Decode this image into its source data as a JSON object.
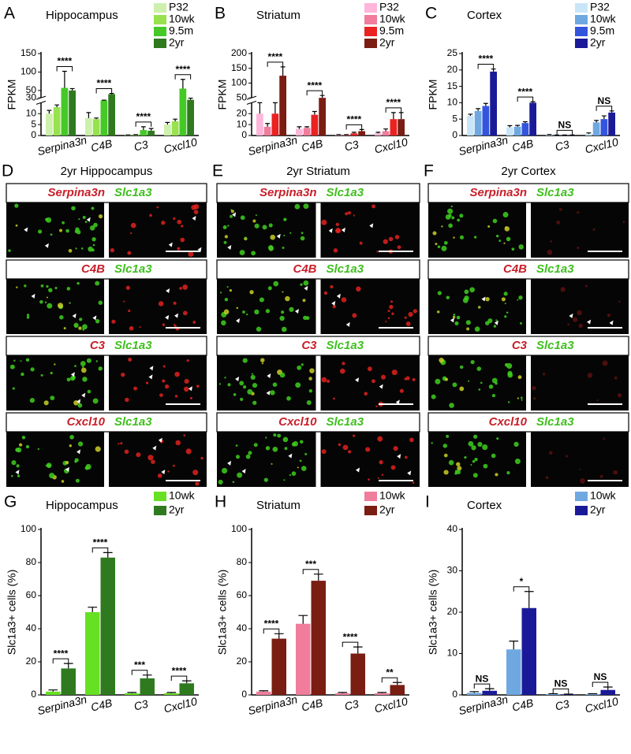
{
  "chart_data": [
    {
      "type": "bar",
      "letter": "A",
      "title": "Hippocampus",
      "ylabel": "FPKM",
      "categories": [
        "Serpina3n",
        "C4B",
        "C3",
        "Cxcl10"
      ],
      "series": [
        {
          "name": "P32",
          "color": "#cdf0ad",
          "values": [
            10,
            8,
            0.2,
            5
          ],
          "errors": [
            1.5,
            2.5,
            0.1,
            1
          ]
        },
        {
          "name": "10wk",
          "color": "#97e24e",
          "values": [
            13,
            7.5,
            0.3,
            6.5
          ],
          "errors": [
            1,
            0.5,
            0.1,
            1
          ]
        },
        {
          "name": "9.5m",
          "color": "#45c927",
          "values": [
            57,
            22,
            2.5,
            55
          ],
          "errors": [
            45,
            1,
            1.5,
            25
          ]
        },
        {
          "name": "2yr",
          "color": "#2f7a1f",
          "values": [
            50,
            40,
            2.2,
            24
          ],
          "errors": [
            5,
            2,
            1,
            5
          ]
        }
      ],
      "significance": [
        "****",
        "****",
        "****",
        "****"
      ],
      "ylim": [
        0,
        150
      ],
      "axis_break": [
        15,
        30
      ],
      "yticks": [
        0,
        5,
        10,
        30,
        50,
        100,
        150
      ]
    },
    {
      "type": "bar",
      "letter": "B",
      "title": "Striatum",
      "ylabel": "FPKM",
      "categories": [
        "Serpina3n",
        "C4B",
        "C3",
        "Cxcl10"
      ],
      "series": [
        {
          "name": "P32",
          "color": "#ffb6da",
          "values": [
            20,
            6,
            0.5,
            2
          ],
          "errors": [
            10,
            2,
            0.3,
            1
          ]
        },
        {
          "name": "10wk",
          "color": "#f07d9c",
          "values": [
            8,
            7,
            0.5,
            4
          ],
          "errors": [
            3,
            1,
            0.3,
            2
          ]
        },
        {
          "name": "9.5m",
          "color": "#ea2222",
          "values": [
            20,
            19,
            2,
            15
          ],
          "errors": [
            10,
            3,
            1,
            6
          ]
        },
        {
          "name": "2yr",
          "color": "#7a1d12",
          "values": [
            125,
            50,
            4,
            15
          ],
          "errors": [
            30,
            8,
            1.5,
            6
          ]
        }
      ],
      "significance": [
        "****",
        "****",
        "****",
        "****"
      ],
      "ylim": [
        0,
        200
      ],
      "axis_break": [
        30,
        50
      ],
      "yticks": [
        0,
        10,
        20,
        50,
        100,
        150,
        200
      ]
    },
    {
      "type": "bar",
      "letter": "C",
      "title": "Cortex",
      "ylabel": "FPKM",
      "categories": [
        "Serpina3n",
        "C4B",
        "C3",
        "Cxcl10"
      ],
      "series": [
        {
          "name": "P32",
          "color": "#c9e5f8",
          "values": [
            6,
            2.5,
            0.2,
            0.5
          ],
          "errors": [
            0.5,
            0.5,
            0.1,
            0.3
          ]
        },
        {
          "name": "10wk",
          "color": "#6fa8e0",
          "values": [
            7.5,
            2.7,
            0.1,
            4
          ],
          "errors": [
            0.7,
            0.4,
            0.05,
            0.6
          ]
        },
        {
          "name": "9.5m",
          "color": "#3355dd",
          "values": [
            9,
            3.8,
            0.1,
            5
          ],
          "errors": [
            0.8,
            0.4,
            0.05,
            1
          ]
        },
        {
          "name": "2yr",
          "color": "#1a1a99",
          "values": [
            19.5,
            10,
            0.1,
            7
          ],
          "errors": [
            0.8,
            0.3,
            0.05,
            0.5
          ]
        }
      ],
      "significance": [
        "****",
        "****",
        "NS",
        "NS"
      ],
      "ylim": [
        0,
        25
      ],
      "yticks": [
        0,
        5,
        10,
        15,
        20,
        25
      ]
    },
    {
      "type": "bar",
      "letter": "G",
      "title": "Hippocampus",
      "ylabel": "Slc1a3+ cells (%)",
      "categories": [
        "Serpina3n",
        "C4B",
        "C3",
        "Cxcl10"
      ],
      "series": [
        {
          "name": "10wk",
          "color": "#66e022",
          "values": [
            2,
            50,
            1,
            1
          ],
          "errors": [
            1,
            3,
            0.5,
            0.5
          ]
        },
        {
          "name": "2yr",
          "color": "#2f7a1f",
          "values": [
            16,
            83,
            10,
            7
          ],
          "errors": [
            3,
            3,
            2,
            1.5
          ]
        }
      ],
      "significance": [
        "****",
        "****",
        "***",
        "****"
      ],
      "ylim": [
        0,
        100
      ],
      "yticks": [
        0,
        20,
        40,
        60,
        80,
        100
      ]
    },
    {
      "type": "bar",
      "letter": "H",
      "title": "Striatum",
      "ylabel": "Slc1a3+ cells (%)",
      "categories": [
        "Serpina3n",
        "C4B",
        "C3",
        "Cxcl10"
      ],
      "series": [
        {
          "name": "10wk",
          "color": "#f07d9c",
          "values": [
            2,
            43,
            1,
            1
          ],
          "errors": [
            0.5,
            5,
            0.5,
            0.5
          ]
        },
        {
          "name": "2yr",
          "color": "#7a1d12",
          "values": [
            34,
            69,
            25,
            6
          ],
          "errors": [
            3,
            4,
            4,
            1.5
          ]
        }
      ],
      "significance": [
        "****",
        "***",
        "****",
        "**"
      ],
      "ylim": [
        0,
        100
      ],
      "yticks": [
        0,
        20,
        40,
        60,
        80,
        100
      ]
    },
    {
      "type": "bar",
      "letter": "I",
      "title": "Cortex",
      "ylabel": "Slc1a3+ cells (%)",
      "categories": [
        "Serpina3n",
        "C4B",
        "C3",
        "Cxcl10"
      ],
      "series": [
        {
          "name": "10wk",
          "color": "#6fa8e0",
          "values": [
            0.5,
            11,
            0.2,
            0.2
          ],
          "errors": [
            0.3,
            2,
            0.1,
            0.1
          ]
        },
        {
          "name": "2yr",
          "color": "#1a1a99",
          "values": [
            1,
            21,
            0.1,
            1.2
          ],
          "errors": [
            0.5,
            4,
            0.1,
            0.7
          ]
        }
      ],
      "significance": [
        "NS",
        "*",
        "NS",
        "NS"
      ],
      "ylim": [
        0,
        40
      ],
      "yticks": [
        0,
        10,
        20,
        30,
        40
      ]
    }
  ],
  "image_panels": [
    {
      "letter": "D",
      "title": "2yr Hippocampus",
      "rows": [
        {
          "gene": "Serpina3n",
          "marker": "Slc1a3"
        },
        {
          "gene": "C4B",
          "marker": "Slc1a3"
        },
        {
          "gene": "C3",
          "marker": "Slc1a3"
        },
        {
          "gene": "Cxcl10",
          "marker": "Slc1a3"
        }
      ]
    },
    {
      "letter": "E",
      "title": "2yr Striatum",
      "rows": [
        {
          "gene": "Serpina3n",
          "marker": "Slc1a3"
        },
        {
          "gene": "C4B",
          "marker": "Slc1a3"
        },
        {
          "gene": "C3",
          "marker": "Slc1a3"
        },
        {
          "gene": "Cxcl10",
          "marker": "Slc1a3"
        }
      ]
    },
    {
      "letter": "F",
      "title": "2yr Cortex",
      "rows": [
        {
          "gene": "Serpina3n",
          "marker": "Slc1a3"
        },
        {
          "gene": "C4B",
          "marker": "Slc1a3"
        },
        {
          "gene": "C3",
          "marker": "Slc1a3"
        },
        {
          "gene": "Cxcl10",
          "marker": "Slc1a3"
        }
      ]
    }
  ]
}
